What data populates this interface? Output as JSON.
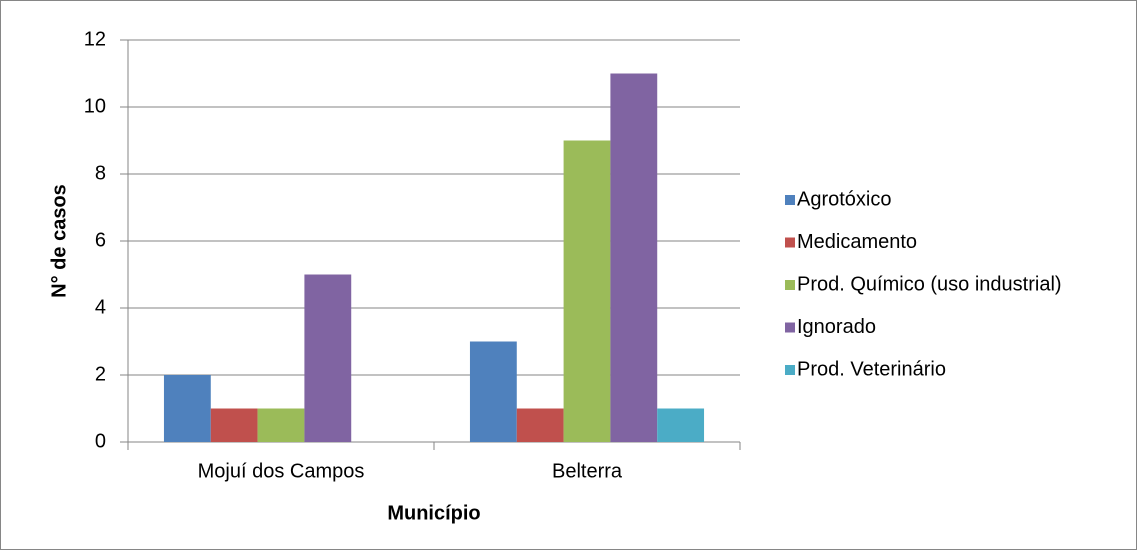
{
  "chart_data": {
    "type": "bar",
    "xlabel": "Município",
    "ylabel": "N° de casos",
    "categories": [
      "Mojuí dos Campos",
      "Belterra"
    ],
    "series": [
      {
        "name": "Agrotóxico",
        "color": "#4f81bd",
        "values": [
          2,
          3
        ]
      },
      {
        "name": "Medicamento",
        "color": "#c0504d",
        "values": [
          1,
          1
        ]
      },
      {
        "name": "Prod. Químico (uso industrial)",
        "color": "#9bbb59",
        "values": [
          1,
          9
        ]
      },
      {
        "name": "Ignorado",
        "color": "#8064a2",
        "values": [
          5,
          11
        ]
      },
      {
        "name": "Prod. Veterinário",
        "color": "#4bacc6",
        "values": [
          0,
          1
        ]
      }
    ],
    "ylim": [
      0,
      12
    ],
    "yticks": [
      0,
      2,
      4,
      6,
      8,
      10,
      12
    ],
    "grid": true,
    "legend": "right"
  }
}
